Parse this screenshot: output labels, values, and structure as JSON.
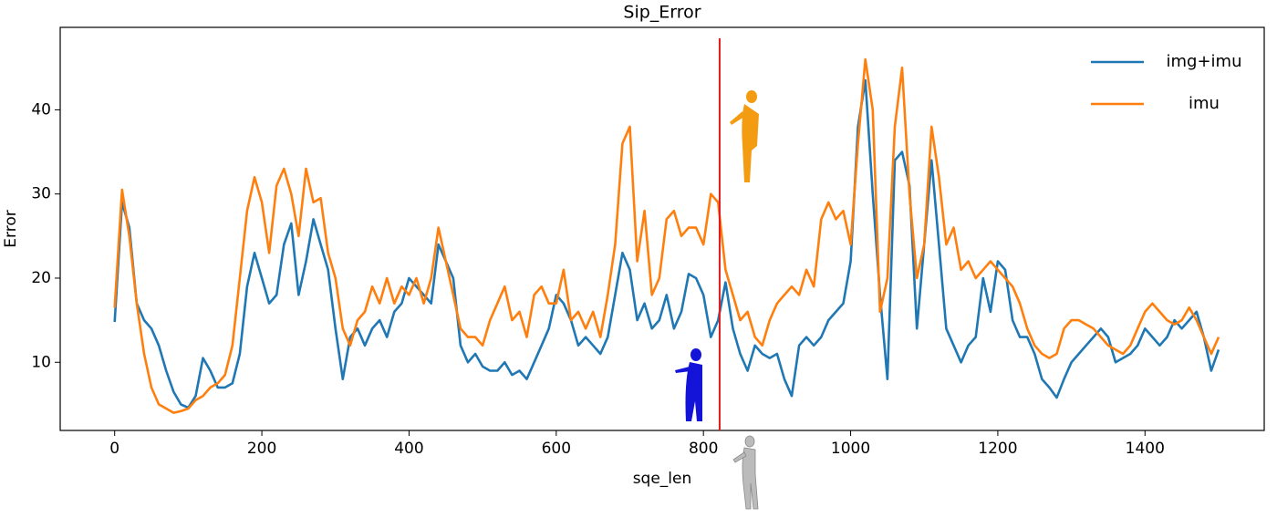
{
  "chart_data": {
    "type": "line",
    "title": "Sip_Error",
    "xlabel": "sqe_len",
    "ylabel": "Error",
    "x": [
      0,
      10,
      20,
      30,
      40,
      50,
      60,
      70,
      80,
      90,
      100,
      110,
      120,
      130,
      140,
      150,
      160,
      170,
      180,
      190,
      200,
      210,
      220,
      230,
      240,
      250,
      260,
      270,
      280,
      290,
      300,
      310,
      320,
      330,
      340,
      350,
      360,
      370,
      380,
      390,
      400,
      410,
      420,
      430,
      440,
      450,
      460,
      470,
      480,
      490,
      500,
      510,
      520,
      530,
      540,
      550,
      560,
      570,
      580,
      590,
      600,
      610,
      620,
      630,
      640,
      650,
      660,
      670,
      680,
      690,
      700,
      710,
      720,
      730,
      740,
      750,
      760,
      770,
      780,
      790,
      800,
      810,
      820,
      830,
      840,
      850,
      860,
      870,
      880,
      890,
      900,
      910,
      920,
      930,
      940,
      950,
      960,
      970,
      980,
      990,
      1000,
      1010,
      1020,
      1030,
      1040,
      1050,
      1060,
      1070,
      1080,
      1090,
      1100,
      1110,
      1120,
      1130,
      1140,
      1150,
      1160,
      1170,
      1180,
      1190,
      1200,
      1210,
      1220,
      1230,
      1240,
      1250,
      1260,
      1270,
      1280,
      1290,
      1300,
      1310,
      1320,
      1330,
      1340,
      1350,
      1360,
      1370,
      1380,
      1390,
      1400,
      1410,
      1420,
      1430,
      1440,
      1450,
      1460,
      1470,
      1480,
      1490,
      1500
    ],
    "series": [
      {
        "name": "img+imu",
        "color": "#1f77b4",
        "values": [
          14.8,
          29,
          26,
          17,
          15,
          14,
          12,
          9,
          6.5,
          5,
          4.6,
          6,
          10.5,
          9,
          7,
          7,
          7.5,
          11,
          19,
          23,
          20,
          17,
          18,
          24,
          26.5,
          18,
          22,
          27,
          24,
          21,
          14,
          8,
          13,
          14,
          12,
          14,
          15,
          13,
          16,
          17,
          20,
          19,
          18,
          17,
          24,
          22,
          20,
          12,
          10,
          11,
          9.5,
          9,
          9,
          10,
          8.5,
          9,
          8,
          10,
          12,
          14,
          18,
          17,
          15,
          12,
          13,
          12,
          11,
          13,
          18,
          23,
          21,
          15,
          17,
          14,
          15,
          18,
          14,
          16,
          20.5,
          20,
          18,
          13,
          15,
          19.5,
          14,
          11,
          9,
          12,
          11,
          10.5,
          11,
          8,
          6,
          12,
          13,
          12,
          13,
          15,
          16,
          17,
          22,
          38,
          43.5,
          30,
          18,
          8,
          34,
          35,
          31,
          14,
          24,
          34,
          24,
          14,
          12,
          10,
          12,
          13,
          20,
          16,
          22,
          21,
          15,
          13,
          13,
          11,
          8,
          7,
          5.8,
          8,
          10,
          11,
          12,
          13,
          14,
          13,
          10,
          10.5,
          11,
          12,
          14,
          13,
          12,
          13,
          15,
          14,
          15,
          16,
          13,
          9,
          11.5
        ]
      },
      {
        "name": "imu",
        "color": "#ff7f0e",
        "values": [
          16.5,
          30.5,
          25,
          17,
          11,
          7,
          5,
          4.5,
          4,
          4.2,
          4.5,
          5.5,
          6,
          7,
          7.5,
          8.5,
          12,
          20,
          28,
          32,
          29,
          23,
          31,
          33,
          30,
          25,
          33,
          29,
          29.5,
          23,
          20,
          14,
          12,
          15,
          16,
          19,
          17,
          20,
          17,
          19,
          18,
          20,
          17,
          20,
          26,
          22,
          18,
          14,
          13,
          13,
          12,
          15,
          17,
          19,
          15,
          16,
          13,
          18,
          19,
          17,
          17,
          21,
          15,
          16,
          14,
          16,
          13,
          18,
          24,
          36,
          38,
          22,
          28,
          18,
          20,
          27,
          28,
          25,
          26,
          26,
          24,
          30,
          29,
          21,
          18,
          15,
          16,
          13,
          12,
          15,
          17,
          18,
          19,
          18,
          21,
          19,
          27,
          29,
          27,
          28,
          24,
          36,
          46,
          40,
          16,
          20,
          38,
          45,
          30,
          20,
          24,
          38,
          32,
          24,
          26,
          21,
          22,
          20,
          21,
          22,
          21,
          20,
          19,
          17,
          14,
          12,
          11,
          10.5,
          11,
          14,
          15,
          15,
          14.5,
          14,
          13,
          12,
          11.5,
          11,
          12,
          14,
          16,
          17,
          16,
          15,
          14.5,
          15,
          16.5,
          15,
          13,
          11,
          13
        ]
      }
    ],
    "vline": {
      "x": 822,
      "color": "#e31a1c"
    },
    "xlim": [
      -74,
      1562
    ],
    "ylim": [
      1.9,
      49.8
    ],
    "xticks": [
      0,
      200,
      400,
      600,
      800,
      1000,
      1200,
      1400
    ],
    "yticks": [
      10,
      20,
      30,
      40
    ],
    "legend": "upper right"
  }
}
